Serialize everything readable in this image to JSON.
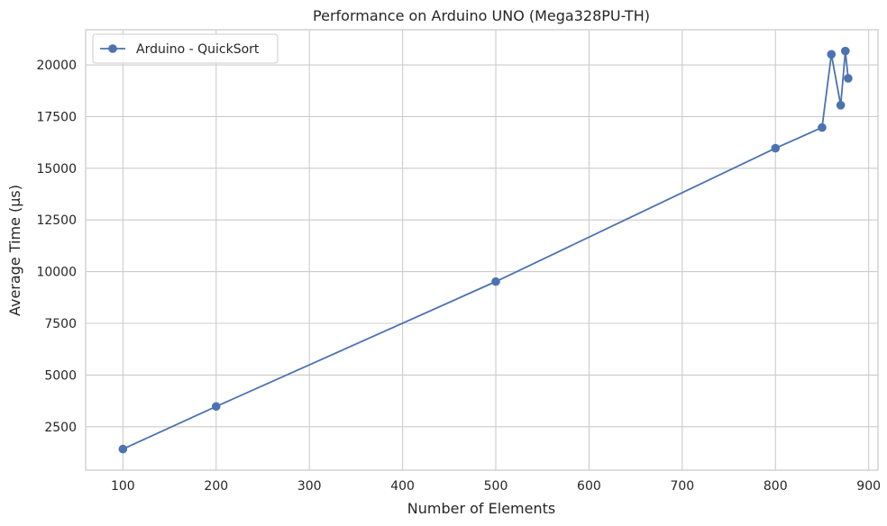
{
  "chart_data": {
    "type": "line",
    "title": "Performance on Arduino UNO (Mega328PU-TH)",
    "xlabel": "Number of Elements",
    "ylabel": "Average Time (µs)",
    "xlim": [
      60,
      910
    ],
    "ylim": [
      400,
      21700
    ],
    "x_ticks": [
      100,
      200,
      300,
      400,
      500,
      600,
      700,
      800,
      900
    ],
    "y_ticks": [
      2500,
      5000,
      7500,
      10000,
      12500,
      15000,
      17500,
      20000
    ],
    "grid": true,
    "legend_position": "top-left",
    "series": [
      {
        "name": "Arduino - QuickSort",
        "color": "#4c72b0",
        "marker": "circle",
        "x": [
          100,
          200,
          500,
          800,
          850,
          860,
          870,
          875,
          878
        ],
        "y": [
          1420,
          3480,
          9520,
          15970,
          16970,
          20510,
          18050,
          20670,
          19350
        ]
      }
    ]
  }
}
